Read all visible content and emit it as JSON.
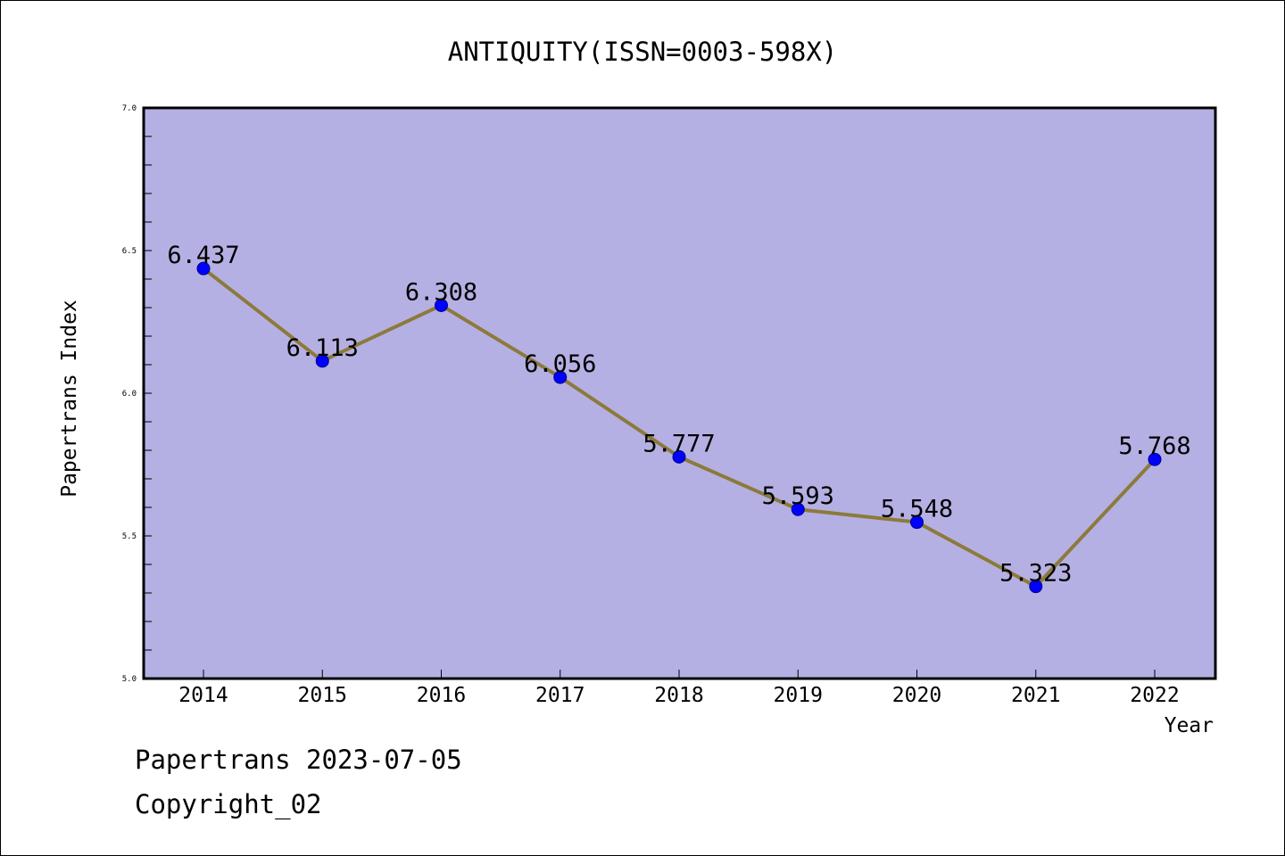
{
  "chart_data": {
    "type": "line",
    "title": "ANTIQUITY(ISSN=0003-598X)",
    "xlabel": "Year",
    "ylabel": "Papertrans Index",
    "categories": [
      "2014",
      "2015",
      "2016",
      "2017",
      "2018",
      "2019",
      "2020",
      "2021",
      "2022"
    ],
    "series": [
      {
        "values": [
          6.437,
          6.113,
          6.308,
          6.056,
          5.777,
          5.593,
          5.548,
          5.323,
          5.768
        ],
        "labels": [
          "6.437",
          "6.113",
          "6.308",
          "6.056",
          "5.777",
          "5.593",
          "5.548",
          "5.323",
          "5.768"
        ]
      }
    ],
    "ylim": [
      5.0,
      7.0
    ],
    "yticks": [
      "5.0",
      "5.5",
      "6.0",
      "6.5",
      "7.0"
    ],
    "grid": false,
    "colors": {
      "plot_background": "#b5b0e3",
      "line": "#8c7a3c",
      "marker": "#0000ff"
    }
  },
  "footer": {
    "date_line": "Papertrans 2023-07-05",
    "copyright_line": "Copyright_02"
  }
}
